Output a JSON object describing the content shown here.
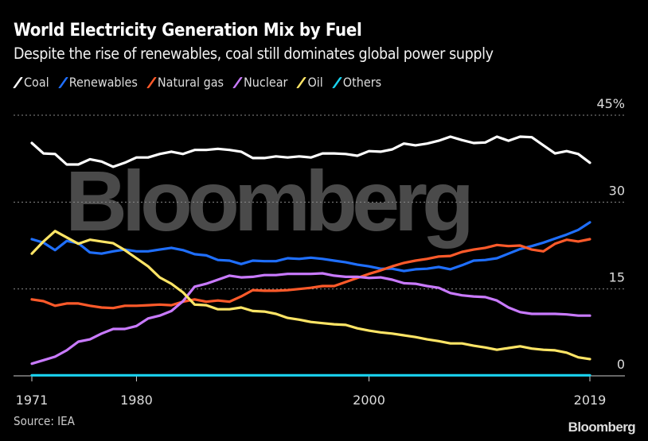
{
  "header": {
    "title": "World Electricity Generation Mix by Fuel",
    "subtitle": "Despite the rise of renewables, coal still dominates global power supply"
  },
  "footer": {
    "source": "Source: IEA",
    "brand": "Bloomberg"
  },
  "watermark": "Bloomberg",
  "chart_data": {
    "type": "line",
    "title": "World Electricity Generation Mix by Fuel",
    "subtitle": "Despite the rise of renewables, coal still dominates global power supply",
    "xlabel": "",
    "ylabel": "",
    "xlim": [
      1971,
      2019
    ],
    "ylim": [
      0,
      45
    ],
    "x_ticks": [
      "1971",
      "1980",
      "2000",
      "2019"
    ],
    "x_tick_values": [
      1971,
      1980,
      2000,
      2019
    ],
    "y_ticks": [
      "0",
      "15",
      "30",
      "45%"
    ],
    "y_tick_values": [
      0,
      15,
      30,
      45
    ],
    "y_axis_side": "right",
    "grid": "horizontal dotted",
    "legend_placement": "top-left",
    "background": "#000000",
    "x": [
      1971,
      1972,
      1973,
      1974,
      1975,
      1976,
      1977,
      1978,
      1979,
      1980,
      1981,
      1982,
      1983,
      1984,
      1985,
      1986,
      1987,
      1988,
      1989,
      1990,
      1991,
      1992,
      1993,
      1994,
      1995,
      1996,
      1997,
      1998,
      1999,
      2000,
      2001,
      2002,
      2003,
      2004,
      2005,
      2006,
      2007,
      2008,
      2009,
      2010,
      2011,
      2012,
      2013,
      2014,
      2015,
      2016,
      2017,
      2018,
      2019
    ],
    "series": [
      {
        "name": "Coal",
        "color": "#ffffff",
        "values": [
          40.2,
          38.4,
          38.3,
          36.5,
          36.5,
          37.4,
          37.0,
          36.1,
          36.8,
          37.7,
          37.7,
          38.3,
          38.7,
          38.3,
          39.0,
          39.0,
          39.2,
          39.0,
          38.7,
          37.6,
          37.6,
          37.9,
          37.7,
          37.9,
          37.7,
          38.4,
          38.4,
          38.3,
          38.0,
          38.8,
          38.7,
          39.1,
          40.1,
          39.8,
          40.1,
          40.6,
          41.3,
          40.7,
          40.2,
          40.3,
          41.3,
          40.6,
          41.3,
          41.2,
          39.8,
          38.4,
          38.8,
          38.3,
          36.8
        ]
      },
      {
        "name": "Renewables",
        "color": "#1f6fff",
        "values": [
          23.6,
          23.0,
          21.7,
          23.3,
          22.9,
          21.3,
          21.1,
          21.5,
          21.8,
          21.5,
          21.5,
          21.8,
          22.1,
          21.7,
          21.0,
          20.8,
          20.0,
          19.9,
          19.3,
          19.9,
          19.8,
          19.8,
          20.3,
          20.2,
          20.4,
          20.2,
          19.9,
          19.6,
          19.2,
          18.9,
          18.5,
          18.5,
          18.1,
          18.4,
          18.5,
          18.8,
          18.4,
          19.1,
          19.9,
          20.0,
          20.3,
          21.1,
          21.9,
          22.4,
          23.0,
          23.7,
          24.4,
          25.2,
          26.5
        ]
      },
      {
        "name": "Natural gas",
        "color": "#ff5a2a",
        "values": [
          13.2,
          12.9,
          12.1,
          12.5,
          12.5,
          12.1,
          11.8,
          11.7,
          12.1,
          12.1,
          12.2,
          12.3,
          12.2,
          12.8,
          13.2,
          12.8,
          13.0,
          12.8,
          13.7,
          14.8,
          14.7,
          14.7,
          14.8,
          15.0,
          15.2,
          15.5,
          15.5,
          16.2,
          16.9,
          17.6,
          18.2,
          18.9,
          19.5,
          19.9,
          20.2,
          20.6,
          20.7,
          21.4,
          21.8,
          22.1,
          22.6,
          22.4,
          22.5,
          21.8,
          21.5,
          22.8,
          23.5,
          23.2,
          23.6
        ]
      },
      {
        "name": "Nuclear",
        "color": "#c97aff",
        "values": [
          2.1,
          2.7,
          3.3,
          4.4,
          5.9,
          6.3,
          7.3,
          8.1,
          8.1,
          8.6,
          9.9,
          10.4,
          11.2,
          12.9,
          15.4,
          15.9,
          16.6,
          17.3,
          17.0,
          17.1,
          17.4,
          17.4,
          17.6,
          17.6,
          17.6,
          17.7,
          17.3,
          17.1,
          17.1,
          16.9,
          17.0,
          16.6,
          16.0,
          15.9,
          15.5,
          15.2,
          14.3,
          13.9,
          13.7,
          13.6,
          13.0,
          11.8,
          11.0,
          10.7,
          10.7,
          10.7,
          10.6,
          10.4,
          10.4
        ]
      },
      {
        "name": "Oil",
        "color": "#ffe566",
        "values": [
          21.1,
          23.2,
          25.0,
          23.9,
          22.8,
          23.5,
          23.2,
          22.9,
          21.7,
          20.3,
          18.9,
          17.0,
          15.9,
          14.4,
          12.3,
          12.2,
          11.5,
          11.5,
          11.8,
          11.2,
          11.1,
          10.7,
          10.0,
          9.7,
          9.3,
          9.1,
          8.9,
          8.8,
          8.2,
          7.8,
          7.5,
          7.3,
          7.0,
          6.7,
          6.3,
          6.0,
          5.6,
          5.6,
          5.2,
          4.9,
          4.5,
          4.8,
          5.1,
          4.7,
          4.5,
          4.4,
          4.0,
          3.2,
          2.9
        ]
      },
      {
        "name": "Others",
        "color": "#1ad3f0",
        "values": [
          0.1,
          0.1,
          0.1,
          0.1,
          0.1,
          0.1,
          0.1,
          0.1,
          0.1,
          0.1,
          0.1,
          0.1,
          0.1,
          0.1,
          0.1,
          0.1,
          0.1,
          0.1,
          0.1,
          0.1,
          0.1,
          0.1,
          0.1,
          0.1,
          0.1,
          0.1,
          0.1,
          0.1,
          0.1,
          0.1,
          0.1,
          0.1,
          0.1,
          0.1,
          0.1,
          0.1,
          0.1,
          0.1,
          0.1,
          0.1,
          0.1,
          0.1,
          0.1,
          0.1,
          0.1,
          0.1,
          0.1,
          0.1,
          0.1
        ]
      }
    ]
  }
}
